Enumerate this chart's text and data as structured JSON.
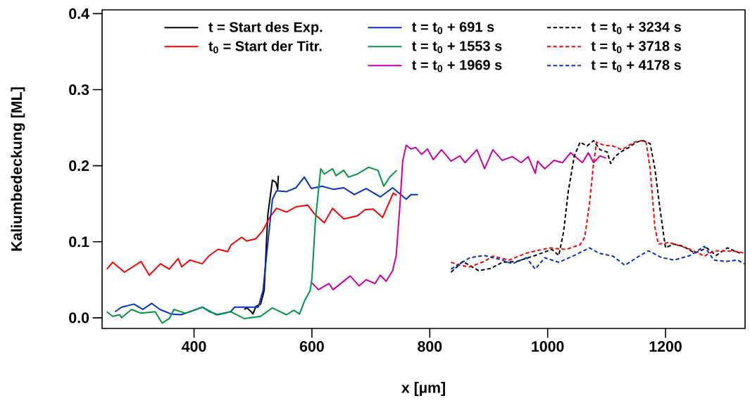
{
  "chart_data": {
    "type": "line",
    "xlabel": "x [µm]",
    "ylabel": "Kaliumbedeckung [ML]",
    "xlim": [
      244,
      1335
    ],
    "ylim": [
      -0.014,
      0.405
    ],
    "xticks": [
      400,
      600,
      800,
      1000,
      1200
    ],
    "yticks": [
      {
        "value": 0,
        "label": "0.0"
      },
      0.1,
      0.2,
      0.3,
      0.4
    ],
    "grid": false,
    "legend": "top",
    "marker": "none",
    "series": [
      {
        "name": "t  = Start des Exp.",
        "color": "#000000",
        "line_style": "solid",
        "x": [
          485,
          490,
          497,
          500,
          505,
          513,
          519,
          525,
          533,
          539,
          542,
          543
        ],
        "values": [
          0.011,
          0.013,
          0.008,
          0.005,
          0.015,
          0.018,
          0.036,
          0.134,
          0.181,
          0.178,
          0.169,
          0.187
        ]
      },
      {
        "name": "t$_{0}$ = Start der Titr.",
        "color": "#ff0000",
        "line_style": "solid",
        "x": [
          252,
          262,
          282,
          310,
          324,
          343,
          358,
          373,
          379,
          393,
          414,
          426,
          441,
          457,
          463,
          481,
          489,
          505,
          517,
          529,
          540,
          557,
          573,
          593,
          605,
          621,
          635,
          654,
          677,
          690,
          704,
          720,
          738,
          744
        ],
        "values": [
          0.064,
          0.073,
          0.06,
          0.074,
          0.056,
          0.071,
          0.064,
          0.078,
          0.067,
          0.076,
          0.071,
          0.082,
          0.09,
          0.087,
          0.096,
          0.106,
          0.101,
          0.104,
          0.115,
          0.133,
          0.144,
          0.139,
          0.146,
          0.148,
          0.136,
          0.125,
          0.144,
          0.13,
          0.134,
          0.142,
          0.143,
          0.132,
          0.164,
          0.161
        ]
      },
      {
        "name": "t = t$_{0}$ +   691 s",
        "color": "#0033cc",
        "line_style": "solid",
        "x": [
          266,
          277,
          298,
          313,
          328,
          342,
          361,
          378,
          397,
          414,
          438,
          462,
          469,
          493,
          509,
          517,
          525,
          533,
          540,
          557,
          573,
          587,
          599,
          617,
          636,
          654,
          672,
          692,
          716,
          737,
          760,
          768,
          780
        ],
        "values": [
          0.008,
          0.014,
          0.018,
          0.011,
          0.019,
          0.011,
          0.005,
          0.004,
          0.009,
          0.014,
          0.004,
          0.008,
          0.014,
          0.014,
          0.014,
          0.036,
          0.097,
          0.156,
          0.167,
          0.166,
          0.171,
          0.185,
          0.17,
          0.173,
          0.169,
          0.171,
          0.162,
          0.17,
          0.159,
          0.171,
          0.156,
          0.162,
          0.162
        ]
      },
      {
        "name": "t = t$_{0}$ + 1553 s",
        "color": "#009944",
        "line_style": "solid",
        "x": [
          252,
          262,
          274,
          277,
          294,
          310,
          334,
          346,
          358,
          366,
          385,
          414,
          426,
          441,
          462,
          485,
          513,
          533,
          557,
          569,
          579,
          588,
          597,
          600,
          606,
          615,
          621,
          635,
          641,
          654,
          662,
          677,
          696,
          712,
          722,
          732,
          744
        ],
        "values": [
          0.008,
          0.002,
          0.004,
          0.0,
          0.011,
          0.006,
          0.008,
          -0.007,
          -0.001,
          0.011,
          0.006,
          0.014,
          0.008,
          0.004,
          0.008,
          -0.001,
          0.002,
          0.013,
          0.004,
          0.01,
          0.005,
          0.023,
          0.036,
          0.051,
          0.129,
          0.196,
          0.189,
          0.196,
          0.187,
          0.194,
          0.185,
          0.189,
          0.198,
          0.194,
          0.173,
          0.185,
          0.194
        ]
      },
      {
        "name": "t = t$_{0}$ + 1969 s",
        "color": "#cc00aa",
        "line_style": "solid",
        "x": [
          600,
          611,
          629,
          636,
          665,
          680,
          692,
          707,
          716,
          726,
          737,
          743,
          749,
          754,
          760,
          768,
          776,
          786,
          796,
          806,
          820,
          836,
          851,
          860,
          880,
          893,
          907,
          923,
          940,
          955,
          967,
          979,
          983,
          995,
          1011,
          1025,
          1039,
          1059,
          1069,
          1078,
          1089,
          1099
        ],
        "values": [
          0.046,
          0.037,
          0.045,
          0.037,
          0.055,
          0.042,
          0.05,
          0.045,
          0.056,
          0.048,
          0.062,
          0.082,
          0.144,
          0.206,
          0.227,
          0.222,
          0.224,
          0.215,
          0.222,
          0.208,
          0.221,
          0.206,
          0.213,
          0.204,
          0.221,
          0.196,
          0.221,
          0.207,
          0.212,
          0.204,
          0.212,
          0.19,
          0.206,
          0.196,
          0.207,
          0.204,
          0.217,
          0.204,
          0.217,
          0.204,
          0.213,
          0.21
        ]
      },
      {
        "name": "t = t$_{0}$ + 3234 s",
        "color": "#000000",
        "line_style": "dashed",
        "x": [
          836,
          856,
          883,
          904,
          923,
          947,
          979,
          1007,
          1019,
          1027,
          1035,
          1045,
          1055,
          1067,
          1078,
          1089,
          1101,
          1107,
          1114,
          1126,
          1138,
          1150,
          1162,
          1174,
          1182,
          1191,
          1200,
          1214,
          1230,
          1250,
          1270,
          1286,
          1305,
          1326
        ],
        "values": [
          0.06,
          0.074,
          0.062,
          0.065,
          0.073,
          0.074,
          0.082,
          0.09,
          0.082,
          0.113,
          0.166,
          0.212,
          0.231,
          0.226,
          0.233,
          0.221,
          0.218,
          0.203,
          0.212,
          0.219,
          0.224,
          0.231,
          0.233,
          0.229,
          0.196,
          0.141,
          0.092,
          0.097,
          0.094,
          0.085,
          0.092,
          0.082,
          0.092,
          0.085
        ]
      },
      {
        "name": "t = t$_{0}$ + 3718 s",
        "color": "#ff0000",
        "line_style": "dashed",
        "x": [
          836,
          851,
          868,
          892,
          907,
          935,
          964,
          1003,
          1031,
          1055,
          1063,
          1071,
          1078,
          1083,
          1095,
          1111,
          1126,
          1147,
          1159,
          1167,
          1174,
          1182,
          1188,
          1206,
          1227,
          1242,
          1266,
          1282,
          1302,
          1322,
          1334
        ],
        "values": [
          0.073,
          0.069,
          0.067,
          0.074,
          0.081,
          0.076,
          0.085,
          0.092,
          0.09,
          0.096,
          0.106,
          0.15,
          0.203,
          0.231,
          0.227,
          0.226,
          0.221,
          0.231,
          0.233,
          0.231,
          0.196,
          0.119,
          0.097,
          0.099,
          0.094,
          0.09,
          0.081,
          0.088,
          0.088,
          0.087,
          0.085
        ]
      },
      {
        "name": "t = t$_{0}$ + 4178 s",
        "color": "#0033cc",
        "line_style": "dashed",
        "x": [
          836,
          868,
          892,
          923,
          940,
          964,
          979,
          995,
          1019,
          1048,
          1071,
          1087,
          1111,
          1131,
          1155,
          1171,
          1194,
          1215,
          1242,
          1266,
          1282,
          1302,
          1322,
          1334
        ],
        "values": [
          0.064,
          0.079,
          0.082,
          0.076,
          0.071,
          0.079,
          0.064,
          0.079,
          0.073,
          0.083,
          0.092,
          0.085,
          0.081,
          0.069,
          0.081,
          0.088,
          0.079,
          0.076,
          0.082,
          0.094,
          0.076,
          0.074,
          0.076,
          0.071
        ]
      }
    ]
  }
}
